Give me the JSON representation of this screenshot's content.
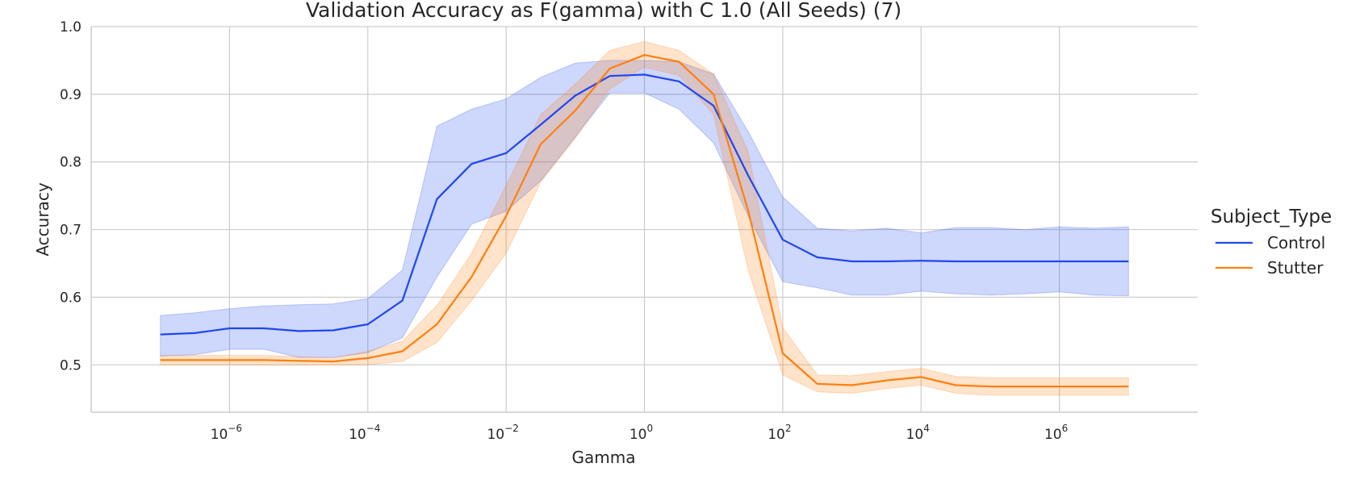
{
  "chart_data": {
    "type": "line",
    "title": "Validation Accuracy as F(gamma) with C 1.0 (All Seeds) (7)",
    "xlabel": "Gamma",
    "ylabel": "Accuracy",
    "xscale": "log",
    "xlim": [
      1e-08,
      100000000.0
    ],
    "ylim": [
      0.43,
      1.0
    ],
    "yticks": [
      0.5,
      0.6,
      0.7,
      0.8,
      0.9,
      1.0
    ],
    "ytick_labels": [
      "0.5",
      "0.6",
      "0.7",
      "0.8",
      "0.9",
      "1.0"
    ],
    "xticks": [
      1e-06,
      0.0001,
      0.01,
      1,
      100.0,
      10000.0,
      1000000.0
    ],
    "xtick_labels": [
      {
        "base": "10",
        "exp": "−6"
      },
      {
        "base": "10",
        "exp": "−4"
      },
      {
        "base": "10",
        "exp": "−2"
      },
      {
        "base": "10",
        "exp": "0"
      },
      {
        "base": "10",
        "exp": "2"
      },
      {
        "base": "10",
        "exp": "4"
      },
      {
        "base": "10",
        "exp": "6"
      }
    ],
    "grid": true,
    "legend": {
      "title": "Subject_Type",
      "position": "right"
    },
    "series": [
      {
        "name": "Control",
        "color": "#1f47f0",
        "x": [
          1e-07,
          3.16e-07,
          1e-06,
          3.16e-06,
          1e-05,
          3.16e-05,
          0.0001,
          0.000316,
          0.001,
          0.00316,
          0.01,
          0.0316,
          0.1,
          0.316,
          1,
          3.16,
          10,
          31.6,
          100,
          316,
          1000,
          3160,
          10000.0,
          31600.0,
          100000.0,
          316000.0,
          1000000.0,
          3160000.0,
          10000000.0
        ],
        "y": [
          0.545,
          0.547,
          0.554,
          0.554,
          0.55,
          0.551,
          0.56,
          0.595,
          0.745,
          0.797,
          0.813,
          0.855,
          0.898,
          0.927,
          0.929,
          0.919,
          0.883,
          0.78,
          0.685,
          0.659,
          0.653,
          0.653,
          0.654,
          0.653,
          0.653,
          0.653,
          0.653,
          0.653,
          0.653
        ],
        "ci_low": [
          0.513,
          0.515,
          0.523,
          0.523,
          0.511,
          0.511,
          0.518,
          0.54,
          0.63,
          0.708,
          0.727,
          0.772,
          0.837,
          0.902,
          0.902,
          0.878,
          0.828,
          0.72,
          0.623,
          0.614,
          0.603,
          0.603,
          0.609,
          0.605,
          0.603,
          0.605,
          0.608,
          0.603,
          0.602
        ],
        "ci_high": [
          0.573,
          0.577,
          0.583,
          0.587,
          0.589,
          0.59,
          0.598,
          0.64,
          0.853,
          0.878,
          0.893,
          0.925,
          0.946,
          0.95,
          0.95,
          0.948,
          0.93,
          0.845,
          0.748,
          0.702,
          0.698,
          0.702,
          0.695,
          0.703,
          0.703,
          0.7,
          0.704,
          0.702,
          0.704
        ]
      },
      {
        "name": "Stutter",
        "color": "#ff7f0e",
        "x": [
          1e-07,
          3.16e-07,
          1e-06,
          3.16e-06,
          1e-05,
          3.16e-05,
          0.0001,
          0.000316,
          0.001,
          0.00316,
          0.01,
          0.0316,
          0.1,
          0.316,
          1,
          3.16,
          10,
          31.6,
          100,
          316,
          1000,
          3160,
          10000.0,
          31600.0,
          100000.0,
          316000.0,
          1000000.0,
          3160000.0,
          10000000.0
        ],
        "y": [
          0.507,
          0.507,
          0.507,
          0.507,
          0.506,
          0.505,
          0.51,
          0.52,
          0.56,
          0.63,
          0.72,
          0.826,
          0.876,
          0.938,
          0.958,
          0.948,
          0.9,
          0.728,
          0.517,
          0.472,
          0.47,
          0.477,
          0.482,
          0.47,
          0.468,
          0.468,
          0.468,
          0.468,
          0.468
        ],
        "ci_low": [
          0.5,
          0.5,
          0.5,
          0.5,
          0.5,
          0.5,
          0.5,
          0.505,
          0.533,
          0.595,
          0.665,
          0.77,
          0.835,
          0.908,
          0.94,
          0.928,
          0.87,
          0.64,
          0.485,
          0.46,
          0.458,
          0.465,
          0.47,
          0.458,
          0.455,
          0.455,
          0.455,
          0.455,
          0.455
        ],
        "ci_high": [
          0.514,
          0.514,
          0.514,
          0.514,
          0.512,
          0.51,
          0.52,
          0.535,
          0.588,
          0.665,
          0.765,
          0.87,
          0.915,
          0.965,
          0.978,
          0.965,
          0.93,
          0.815,
          0.555,
          0.485,
          0.484,
          0.49,
          0.495,
          0.483,
          0.481,
          0.481,
          0.481,
          0.481,
          0.481
        ]
      }
    ]
  }
}
